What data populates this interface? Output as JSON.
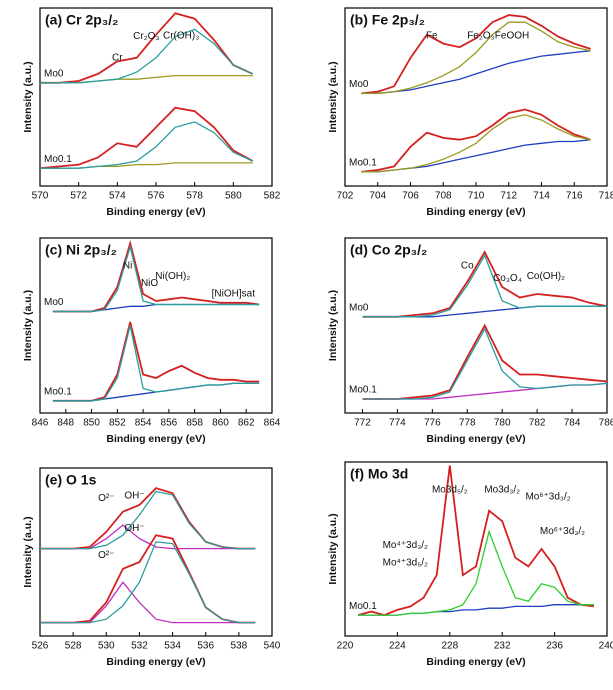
{
  "chart_data": [
    {
      "type": "line",
      "title": "(a) Cr 2p₃/₂",
      "xlabel": "Binding energy (eV)",
      "ylabel": "Intensity (a.u.)",
      "x": [
        570,
        571,
        572,
        573,
        574,
        575,
        576,
        577,
        578,
        579,
        580,
        581
      ],
      "xlim": [
        570,
        582
      ],
      "xticks": [
        570,
        572,
        574,
        576,
        578,
        580,
        582
      ],
      "ylim": [
        0,
        100
      ],
      "annotations": [
        "Cr",
        "Cr₂O₃",
        "Cr(OH)₃"
      ],
      "series": [
        {
          "name": "Mo0",
          "color": "#d62020",
          "values": [
            58,
            58,
            59,
            63,
            70,
            72,
            85,
            97,
            94,
            82,
            68,
            63
          ]
        },
        {
          "color": "#9a9a20",
          "values": [
            58,
            58,
            58,
            59,
            60,
            60,
            61,
            62,
            62,
            62,
            62,
            62
          ]
        },
        {
          "color": "#2a9d9d",
          "values": [
            58,
            58,
            58,
            59,
            60,
            64,
            72,
            84,
            88,
            80,
            68,
            63
          ]
        },
        {
          "name": "Mo0.1",
          "color": "#d62020",
          "values": [
            10,
            11,
            12,
            16,
            24,
            22,
            33,
            44,
            42,
            33,
            20,
            14
          ]
        },
        {
          "color": "#9a9a20",
          "values": [
            10,
            10,
            10,
            11,
            11,
            12,
            12,
            13,
            13,
            13,
            13,
            13
          ]
        },
        {
          "color": "#2a9d9d",
          "values": [
            10,
            10,
            10,
            11,
            12,
            14,
            22,
            33,
            36,
            30,
            19,
            14
          ]
        }
      ]
    },
    {
      "type": "line",
      "title": "(b) Fe 2p₃/₂",
      "xlabel": "Binding energy (eV)",
      "ylabel": "Intensity (a.u.)",
      "x": [
        703,
        704,
        705,
        706,
        707,
        708,
        709,
        710,
        711,
        712,
        713,
        714,
        715,
        716,
        717
      ],
      "xlim": [
        702,
        718
      ],
      "xticks": [
        702,
        704,
        706,
        708,
        710,
        712,
        714,
        716,
        718
      ],
      "ylim": [
        0,
        100
      ],
      "annotations": [
        "Fe",
        "Fe₂O₃",
        "FeOOH"
      ],
      "series": [
        {
          "name": "Mo0",
          "color": "#d62020",
          "values": [
            52,
            53,
            56,
            72,
            85,
            80,
            78,
            83,
            92,
            96,
            95,
            90,
            84,
            80,
            77
          ]
        },
        {
          "color": "#1f3fbf",
          "values": [
            52,
            52,
            53,
            54,
            56,
            58,
            60,
            63,
            66,
            69,
            71,
            73,
            74,
            75,
            76
          ]
        },
        {
          "color": "#9a9a20",
          "values": [
            52,
            52,
            53,
            55,
            58,
            62,
            67,
            75,
            85,
            92,
            92,
            87,
            81,
            78,
            76
          ]
        },
        {
          "name": "Mo0.1",
          "color": "#d62020",
          "values": [
            8,
            9,
            11,
            22,
            30,
            27,
            26,
            28,
            34,
            41,
            43,
            40,
            34,
            29,
            26
          ]
        },
        {
          "color": "#1f3fbf",
          "values": [
            8,
            8,
            9,
            10,
            11,
            13,
            15,
            17,
            19,
            21,
            23,
            24,
            25,
            25,
            26
          ]
        },
        {
          "color": "#9a9a20",
          "values": [
            8,
            8,
            9,
            10,
            12,
            15,
            19,
            24,
            32,
            38,
            40,
            37,
            32,
            28,
            26
          ]
        }
      ]
    },
    {
      "type": "line",
      "title": "(c) Ni 2p₃/₂",
      "xlabel": "Binding energy (eV)",
      "ylabel": "Intensity (a.u.)",
      "x": [
        847,
        848,
        849,
        850,
        851,
        852,
        853,
        854,
        855,
        856,
        857,
        858,
        859,
        860,
        861,
        862,
        863
      ],
      "xlim": [
        846,
        864
      ],
      "xticks": [
        846,
        848,
        850,
        852,
        854,
        856,
        858,
        860,
        862,
        864
      ],
      "ylim": [
        0,
        100
      ],
      "annotations": [
        "Ni",
        "NiO",
        "Ni(OH)₂",
        "[NiOH]sat"
      ],
      "series": [
        {
          "name": "Mo0",
          "color": "#d62020",
          "values": [
            58,
            58,
            58,
            58,
            60,
            72,
            97,
            68,
            64,
            65,
            66,
            65,
            64,
            63,
            63,
            63,
            62
          ]
        },
        {
          "color": "#1f3fbf",
          "values": [
            58,
            58,
            58,
            58,
            59,
            60,
            61,
            61,
            62,
            62,
            62,
            62,
            62,
            62,
            62,
            62,
            62
          ]
        },
        {
          "color": "#2a9d9d",
          "values": [
            58,
            58,
            58,
            58,
            59,
            70,
            95,
            64,
            62,
            62,
            62,
            62,
            62,
            62,
            62,
            62,
            62
          ]
        },
        {
          "name": "Mo0.1",
          "color": "#d62020",
          "values": [
            7,
            7,
            7,
            7,
            9,
            22,
            52,
            22,
            20,
            24,
            27,
            23,
            20,
            19,
            19,
            18,
            18
          ]
        },
        {
          "color": "#1f3fbf",
          "values": [
            7,
            7,
            7,
            7,
            8,
            9,
            10,
            11,
            12,
            13,
            14,
            15,
            16,
            16,
            17,
            17,
            17
          ]
        },
        {
          "color": "#2a9d9d",
          "values": [
            7,
            7,
            7,
            7,
            8,
            20,
            50,
            14,
            12,
            13,
            14,
            15,
            16,
            16,
            17,
            17,
            17
          ]
        }
      ]
    },
    {
      "type": "line",
      "title": "(d) Co 2p₃/₂",
      "xlabel": "Binding energy (eV)",
      "ylabel": "Intensity (a.u.)",
      "x": [
        772,
        773,
        774,
        775,
        776,
        777,
        778,
        779,
        780,
        781,
        782,
        783,
        784,
        785,
        786
      ],
      "xlim": [
        771,
        786
      ],
      "xticks": [
        772,
        774,
        776,
        778,
        780,
        782,
        784,
        786
      ],
      "ylim": [
        0,
        100
      ],
      "annotations": [
        "Co",
        "Co₃O₄",
        "Co(OH)₂"
      ],
      "series": [
        {
          "name": "Mo0",
          "color": "#d62020",
          "values": [
            55,
            55,
            55,
            56,
            57,
            60,
            75,
            92,
            72,
            66,
            68,
            67,
            66,
            63,
            61
          ]
        },
        {
          "color": "#1f3fbf",
          "values": [
            55,
            55,
            55,
            55,
            55,
            56,
            57,
            58,
            59,
            60,
            61,
            61,
            61,
            61,
            61
          ]
        },
        {
          "color": "#2a9d9d",
          "values": [
            55,
            55,
            55,
            55,
            56,
            59,
            73,
            90,
            64,
            60,
            61,
            61,
            61,
            61,
            61
          ]
        },
        {
          "name": "Mo0.1",
          "color": "#d62020",
          "values": [
            8,
            8,
            8,
            9,
            10,
            13,
            32,
            50,
            30,
            22,
            22,
            21,
            20,
            19,
            18
          ]
        },
        {
          "color": "#c030c0",
          "values": [
            8,
            8,
            8,
            8,
            8,
            9,
            10,
            11,
            12,
            13,
            14,
            15,
            16,
            16,
            17
          ]
        },
        {
          "color": "#2a9d9d",
          "values": [
            8,
            8,
            8,
            8,
            9,
            12,
            30,
            48,
            24,
            15,
            14,
            15,
            16,
            16,
            17
          ]
        }
      ]
    },
    {
      "type": "line",
      "title": "(e) O 1s",
      "xlabel": "Binding energy (eV)",
      "ylabel": "Intensity (a.u.)",
      "x": [
        526,
        527,
        528,
        529,
        530,
        531,
        532,
        533,
        534,
        535,
        536,
        537,
        538,
        539
      ],
      "xlim": [
        526,
        540
      ],
      "xticks": [
        526,
        528,
        530,
        532,
        534,
        536,
        538,
        540
      ],
      "ylim": [
        0,
        100
      ],
      "annotations": [
        "O²⁻",
        "OH⁻",
        "O²⁻",
        "OH⁻"
      ],
      "series": [
        {
          "color": "#d62020",
          "values": [
            52,
            52,
            52,
            53,
            62,
            74,
            78,
            88,
            85,
            68,
            56,
            53,
            52,
            52
          ]
        },
        {
          "color": "#c030c0",
          "values": [
            52,
            52,
            52,
            52,
            58,
            66,
            58,
            53,
            52,
            52,
            52,
            52,
            52,
            52
          ]
        },
        {
          "color": "#2a9d9d",
          "values": [
            52,
            52,
            52,
            52,
            54,
            60,
            72,
            86,
            84,
            67,
            56,
            53,
            52,
            52
          ]
        },
        {
          "color": "#d62020",
          "values": [
            8,
            8,
            8,
            9,
            20,
            40,
            44,
            60,
            58,
            38,
            17,
            10,
            8,
            8
          ]
        },
        {
          "color": "#c030c0",
          "values": [
            8,
            8,
            8,
            8,
            18,
            32,
            20,
            10,
            8,
            8,
            8,
            8,
            8,
            8
          ]
        },
        {
          "color": "#2a9d9d",
          "values": [
            8,
            8,
            8,
            8,
            10,
            18,
            32,
            56,
            55,
            37,
            17,
            10,
            8,
            8
          ]
        }
      ]
    },
    {
      "type": "line",
      "title": "(f) Mo 3d",
      "xlabel": "Binding energy (eV)",
      "ylabel": "Intensity (a.u.)",
      "x": [
        221,
        222,
        223,
        224,
        225,
        226,
        227,
        228,
        229,
        230,
        231,
        232,
        233,
        234,
        235,
        236,
        237,
        238,
        239
      ],
      "xlim": [
        220,
        240
      ],
      "xticks": [
        220,
        224,
        228,
        232,
        236,
        240
      ],
      "ylim": [
        0,
        100
      ],
      "annotations": [
        "Mo3d₅/₂",
        "Mo3d₃/₂",
        "Mo⁶⁺3d₃/₂",
        "Mo⁴⁺3d₃/₂",
        "Mo⁴⁺3d₅/₂",
        "Mo⁶⁺3d₃/₂"
      ],
      "series": [
        {
          "name": "Mo0.1",
          "color": "#d62020",
          "values": [
            12,
            14,
            12,
            15,
            17,
            22,
            35,
            98,
            35,
            40,
            72,
            66,
            45,
            40,
            50,
            40,
            22,
            18,
            17
          ]
        },
        {
          "color": "#1f3fbf",
          "values": [
            12,
            12,
            12,
            12,
            13,
            13,
            14,
            14,
            15,
            15,
            16,
            16,
            17,
            17,
            17,
            18,
            18,
            18,
            18
          ]
        },
        {
          "color": "#2bd02b",
          "values": [
            12,
            12,
            12,
            12,
            13,
            13,
            14,
            15,
            18,
            30,
            60,
            40,
            22,
            20,
            30,
            28,
            20,
            18,
            18
          ]
        }
      ]
    }
  ]
}
